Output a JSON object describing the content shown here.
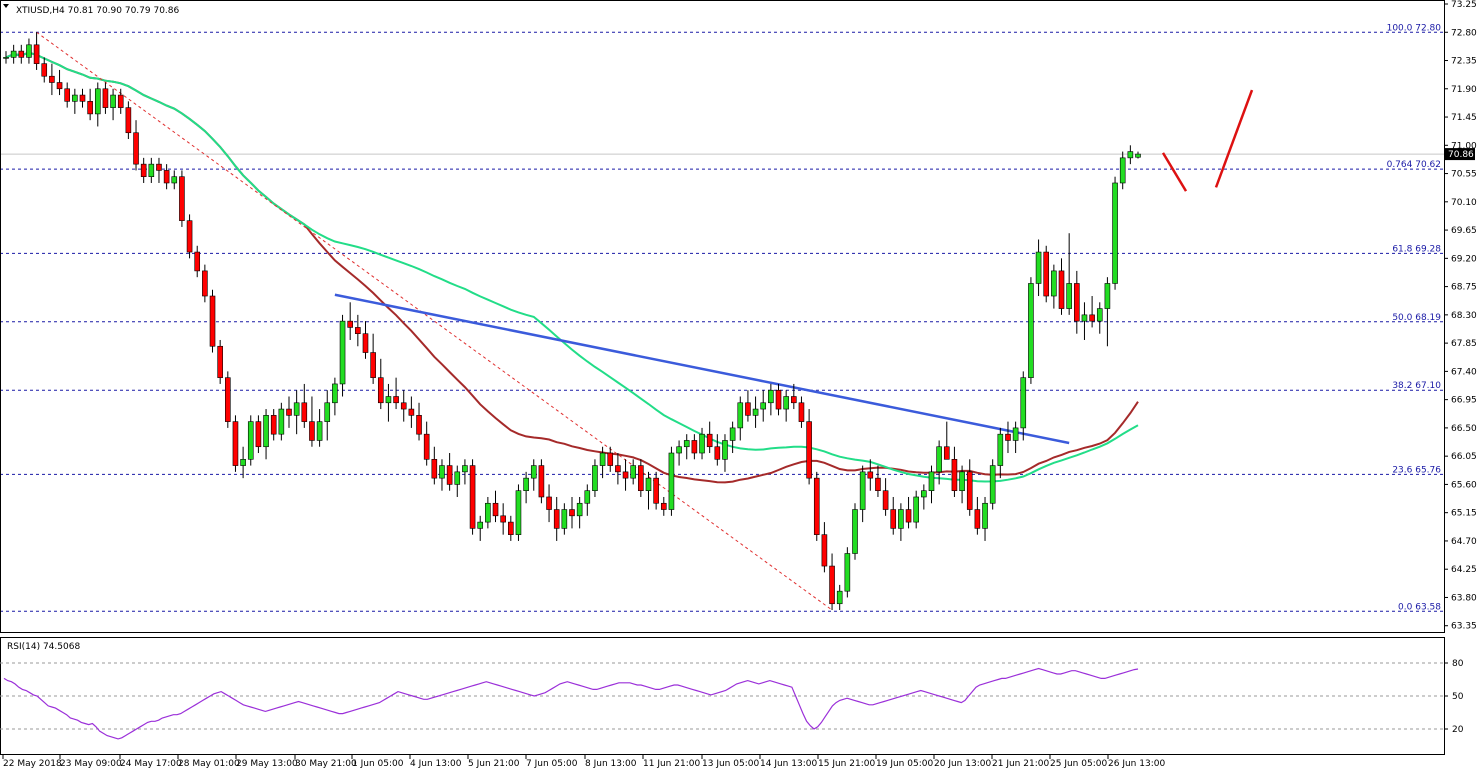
{
  "header": {
    "symbol_line": "XTIUSD,H4  70.81 70.90 70.79 70.86"
  },
  "rsi_panel": {
    "label": "RSI(14) 74.5068",
    "levels": [
      80,
      50,
      20
    ],
    "ylim": [
      0,
      100
    ],
    "values": [
      66,
      64,
      63,
      61,
      58,
      56,
      55,
      53,
      51,
      50,
      47,
      44,
      41,
      40,
      39,
      37,
      35,
      33,
      30,
      29,
      28,
      26,
      25,
      24,
      25,
      22,
      18,
      16,
      14,
      13,
      12,
      11,
      12,
      14,
      16,
      18,
      20,
      22,
      24,
      26,
      27,
      27,
      28,
      30,
      31,
      32,
      33,
      33,
      34,
      36,
      38,
      40,
      42,
      44,
      46,
      48,
      50,
      52,
      53,
      54,
      52,
      50,
      48,
      46,
      44,
      42,
      41,
      40,
      39,
      38,
      37,
      36,
      37,
      38,
      39,
      40,
      41,
      42,
      43,
      44,
      45,
      44,
      43,
      42,
      41,
      40,
      39,
      38,
      37,
      36,
      35,
      34,
      34,
      35,
      36,
      37,
      38,
      39,
      40,
      41,
      42,
      43,
      44,
      46,
      48,
      50,
      52,
      54,
      53,
      52,
      51,
      50,
      49,
      48,
      47,
      47,
      48,
      49,
      50,
      51,
      52,
      53,
      54,
      55,
      56,
      57,
      58,
      59,
      60,
      61,
      62,
      63,
      62,
      61,
      60,
      59,
      58,
      57,
      56,
      55,
      54,
      53,
      52,
      51,
      50,
      51,
      52,
      53,
      55,
      57,
      59,
      61,
      62,
      63,
      62,
      61,
      60,
      59,
      58,
      57,
      56,
      56,
      57,
      58,
      59,
      60,
      61,
      62,
      62,
      62,
      62,
      61,
      60,
      60,
      59,
      58,
      57,
      56,
      56,
      57,
      58,
      59,
      60,
      60,
      59,
      58,
      57,
      56,
      55,
      54,
      53,
      52,
      51,
      52,
      53,
      54,
      55,
      57,
      59,
      61,
      62,
      63,
      64,
      63,
      62,
      61,
      62,
      63,
      64,
      63,
      62,
      61,
      60,
      59,
      58,
      50,
      42,
      34,
      27,
      23,
      20,
      22,
      26,
      31,
      36,
      41,
      44,
      46,
      47,
      48,
      47,
      46,
      45,
      44,
      43,
      42,
      42,
      43,
      44,
      45,
      46,
      47,
      48,
      49,
      50,
      51,
      52,
      53,
      54,
      55,
      54,
      53,
      52,
      51,
      50,
      49,
      48,
      47,
      46,
      45,
      44,
      46,
      50,
      54,
      58,
      60,
      61,
      62,
      63,
      64,
      65,
      66,
      66,
      67,
      68,
      69,
      70,
      71,
      72,
      73,
      74,
      75,
      74,
      73,
      72,
      71,
      70,
      70,
      71,
      72,
      73,
      73,
      72,
      71,
      70,
      69,
      68,
      67,
      66,
      66,
      67,
      68,
      69,
      70,
      71,
      72,
      73,
      74,
      74.5
    ]
  },
  "chart_data": {
    "type": "candlestick",
    "title": "XTIUSD,H4",
    "ylim": [
      63.25,
      73.25
    ],
    "y_ticks": [
      "73.25",
      "72.80",
      "72.35",
      "71.90",
      "71.45",
      "71.00",
      "70.55",
      "70.10",
      "69.65",
      "69.20",
      "68.75",
      "68.30",
      "67.85",
      "67.40",
      "66.95",
      "66.50",
      "66.05",
      "65.60",
      "65.15",
      "64.70",
      "64.25",
      "63.80",
      "63.35"
    ],
    "x_tick_labels": [
      "22 May 2018",
      "23 May 09:00",
      "24 May 17:00",
      "28 May 01:00",
      "29 May 13:00",
      "30 May 21:00",
      "1 Jun 05:00",
      "4 Jun 13:00",
      "5 Jun 21:00",
      "7 Jun 05:00",
      "8 Jun 13:00",
      "11 Jun 21:00",
      "13 Jun 05:00",
      "14 Jun 13:00",
      "15 Jun 21:00",
      "19 Jun 05:00",
      "20 Jun 13:00",
      "21 Jun 21:00",
      "25 Jun 05:00",
      "26 Jun 13:00"
    ],
    "current_price": "70.86",
    "fibonacci": [
      {
        "label": "100.0 72.80",
        "price": 72.8
      },
      {
        "label": "0.764 70.62",
        "price": 70.62
      },
      {
        "label": "61.8 69.28",
        "price": 69.28
      },
      {
        "label": "50.0 68.19",
        "price": 68.19
      },
      {
        "label": "38.2 67.10",
        "price": 67.1
      },
      {
        "label": "23.6 65.76",
        "price": 65.76
      },
      {
        "label": "0.0 63.58",
        "price": 63.58
      }
    ],
    "ohlc": [
      [
        72.4,
        72.5,
        72.3,
        72.4
      ],
      [
        72.4,
        72.6,
        72.3,
        72.5
      ],
      [
        72.5,
        72.6,
        72.3,
        72.4
      ],
      [
        72.4,
        72.7,
        72.3,
        72.6
      ],
      [
        72.6,
        72.8,
        72.2,
        72.3
      ],
      [
        72.3,
        72.4,
        72.0,
        72.1
      ],
      [
        72.1,
        72.3,
        71.8,
        72.0
      ],
      [
        72.0,
        72.2,
        71.8,
        71.9
      ],
      [
        71.9,
        72.0,
        71.6,
        71.7
      ],
      [
        71.7,
        71.9,
        71.5,
        71.8
      ],
      [
        71.8,
        71.9,
        71.6,
        71.7
      ],
      [
        71.7,
        71.9,
        71.4,
        71.5
      ],
      [
        71.5,
        72.0,
        71.3,
        71.9
      ],
      [
        71.9,
        72.0,
        71.5,
        71.6
      ],
      [
        71.6,
        71.9,
        71.4,
        71.8
      ],
      [
        71.8,
        71.9,
        71.5,
        71.6
      ],
      [
        71.6,
        71.7,
        71.1,
        71.2
      ],
      [
        71.2,
        71.4,
        70.6,
        70.7
      ],
      [
        70.7,
        70.8,
        70.4,
        70.5
      ],
      [
        70.5,
        70.8,
        70.4,
        70.7
      ],
      [
        70.7,
        70.8,
        70.4,
        70.6
      ],
      [
        70.6,
        70.7,
        70.3,
        70.4
      ],
      [
        70.4,
        70.6,
        70.3,
        70.5
      ],
      [
        70.5,
        70.6,
        69.7,
        69.8
      ],
      [
        69.8,
        69.9,
        69.2,
        69.3
      ],
      [
        69.3,
        69.4,
        68.9,
        69.0
      ],
      [
        69.0,
        69.1,
        68.5,
        68.6
      ],
      [
        68.6,
        68.7,
        67.7,
        67.8
      ],
      [
        67.8,
        67.9,
        67.2,
        67.3
      ],
      [
        67.3,
        67.4,
        66.5,
        66.6
      ],
      [
        66.6,
        66.7,
        65.8,
        65.9
      ],
      [
        65.9,
        66.2,
        65.7,
        66.0
      ],
      [
        66.0,
        66.7,
        65.9,
        66.6
      ],
      [
        66.6,
        66.7,
        66.1,
        66.2
      ],
      [
        66.2,
        66.8,
        66.0,
        66.7
      ],
      [
        66.7,
        66.8,
        66.3,
        66.4
      ],
      [
        66.4,
        66.9,
        66.3,
        66.8
      ],
      [
        66.8,
        67.0,
        66.5,
        66.7
      ],
      [
        66.7,
        67.1,
        66.4,
        66.9
      ],
      [
        66.9,
        67.2,
        66.5,
        66.6
      ],
      [
        66.6,
        67.0,
        66.2,
        66.3
      ],
      [
        66.3,
        66.8,
        66.2,
        66.6
      ],
      [
        66.6,
        67.1,
        66.3,
        66.9
      ],
      [
        66.9,
        67.3,
        66.7,
        67.2
      ],
      [
        67.2,
        68.3,
        67.0,
        68.2
      ],
      [
        68.2,
        68.5,
        67.9,
        68.1
      ],
      [
        68.1,
        68.3,
        67.8,
        68.0
      ],
      [
        68.0,
        68.2,
        67.6,
        67.7
      ],
      [
        67.7,
        68.0,
        67.2,
        67.3
      ],
      [
        67.3,
        67.6,
        66.8,
        66.9
      ],
      [
        66.9,
        67.2,
        66.6,
        67.0
      ],
      [
        67.0,
        67.3,
        66.8,
        66.9
      ],
      [
        66.9,
        67.1,
        66.6,
        66.8
      ],
      [
        66.8,
        67.0,
        66.5,
        66.7
      ],
      [
        66.7,
        66.9,
        66.3,
        66.4
      ],
      [
        66.4,
        66.6,
        65.9,
        66.0
      ],
      [
        66.0,
        66.2,
        65.6,
        65.7
      ],
      [
        65.7,
        66.0,
        65.5,
        65.9
      ],
      [
        65.9,
        66.1,
        65.5,
        65.6
      ],
      [
        65.6,
        65.9,
        65.4,
        65.8
      ],
      [
        65.8,
        66.0,
        65.6,
        65.9
      ],
      [
        65.9,
        66.0,
        64.8,
        64.9
      ],
      [
        64.9,
        65.1,
        64.7,
        65.0
      ],
      [
        65.0,
        65.4,
        64.9,
        65.3
      ],
      [
        65.3,
        65.5,
        65.0,
        65.1
      ],
      [
        65.1,
        65.3,
        64.8,
        65.0
      ],
      [
        65.0,
        65.1,
        64.7,
        64.8
      ],
      [
        64.8,
        65.6,
        64.7,
        65.5
      ],
      [
        65.5,
        65.8,
        65.3,
        65.7
      ],
      [
        65.7,
        66.0,
        65.5,
        65.9
      ],
      [
        65.9,
        66.0,
        65.3,
        65.4
      ],
      [
        65.4,
        65.6,
        65.0,
        65.2
      ],
      [
        65.2,
        65.4,
        64.7,
        64.9
      ],
      [
        64.9,
        65.3,
        64.8,
        65.2
      ],
      [
        65.2,
        65.4,
        64.9,
        65.1
      ],
      [
        65.1,
        65.4,
        64.9,
        65.3
      ],
      [
        65.3,
        65.6,
        65.1,
        65.5
      ],
      [
        65.5,
        66.0,
        65.4,
        65.9
      ],
      [
        65.9,
        66.2,
        65.7,
        66.1
      ],
      [
        66.1,
        66.2,
        65.8,
        65.9
      ],
      [
        65.9,
        66.1,
        65.6,
        65.8
      ],
      [
        65.8,
        66.0,
        65.5,
        65.7
      ],
      [
        65.7,
        66.0,
        65.6,
        65.9
      ],
      [
        65.9,
        66.0,
        65.4,
        65.5
      ],
      [
        65.5,
        65.8,
        65.2,
        65.7
      ],
      [
        65.7,
        65.8,
        65.2,
        65.3
      ],
      [
        65.3,
        65.4,
        65.1,
        65.2
      ],
      [
        65.2,
        66.2,
        65.1,
        66.1
      ],
      [
        66.1,
        66.3,
        65.9,
        66.2
      ],
      [
        66.2,
        66.4,
        66.0,
        66.3
      ],
      [
        66.3,
        66.4,
        66.0,
        66.1
      ],
      [
        66.1,
        66.5,
        66.0,
        66.4
      ],
      [
        66.4,
        66.6,
        66.1,
        66.2
      ],
      [
        66.2,
        66.4,
        65.9,
        66.0
      ],
      [
        66.0,
        66.4,
        65.8,
        66.3
      ],
      [
        66.3,
        66.6,
        66.1,
        66.5
      ],
      [
        66.5,
        67.0,
        66.3,
        66.9
      ],
      [
        66.9,
        67.1,
        66.6,
        66.7
      ],
      [
        66.7,
        67.0,
        66.5,
        66.8
      ],
      [
        66.8,
        67.1,
        66.6,
        66.9
      ],
      [
        66.9,
        67.2,
        66.7,
        67.1
      ],
      [
        67.1,
        67.2,
        66.7,
        66.8
      ],
      [
        66.8,
        67.1,
        66.6,
        67.0
      ],
      [
        67.0,
        67.2,
        66.8,
        66.9
      ],
      [
        66.9,
        67.0,
        66.5,
        66.6
      ],
      [
        66.6,
        66.8,
        65.6,
        65.7
      ],
      [
        65.7,
        65.8,
        64.7,
        64.8
      ],
      [
        64.8,
        65.0,
        64.2,
        64.3
      ],
      [
        64.3,
        64.5,
        63.6,
        63.7
      ],
      [
        63.7,
        64.0,
        63.6,
        63.9
      ],
      [
        63.9,
        64.6,
        63.8,
        64.5
      ],
      [
        64.5,
        65.3,
        64.4,
        65.2
      ],
      [
        65.2,
        65.9,
        65.0,
        65.8
      ],
      [
        65.8,
        66.0,
        65.5,
        65.7
      ],
      [
        65.7,
        65.9,
        65.4,
        65.5
      ],
      [
        65.5,
        65.7,
        65.1,
        65.2
      ],
      [
        65.2,
        65.4,
        64.8,
        64.9
      ],
      [
        64.9,
        65.3,
        64.7,
        65.2
      ],
      [
        65.2,
        65.4,
        64.9,
        65.0
      ],
      [
        65.0,
        65.5,
        64.9,
        65.4
      ],
      [
        65.4,
        65.6,
        65.2,
        65.5
      ],
      [
        65.5,
        65.9,
        65.3,
        65.8
      ],
      [
        65.8,
        66.3,
        65.6,
        66.2
      ],
      [
        66.2,
        66.6,
        66.0,
        66.0
      ],
      [
        66.0,
        66.2,
        65.4,
        65.5
      ],
      [
        65.5,
        65.9,
        65.3,
        65.8
      ],
      [
        65.8,
        66.0,
        65.1,
        65.2
      ],
      [
        65.2,
        65.4,
        64.8,
        64.9
      ],
      [
        64.9,
        65.4,
        64.7,
        65.3
      ],
      [
        65.3,
        66.0,
        65.2,
        65.9
      ],
      [
        65.9,
        66.5,
        65.7,
        66.4
      ],
      [
        66.4,
        66.6,
        66.1,
        66.3
      ],
      [
        66.3,
        66.6,
        66.1,
        66.5
      ],
      [
        66.5,
        67.4,
        66.3,
        67.3
      ],
      [
        67.3,
        68.9,
        67.2,
        68.8
      ],
      [
        68.8,
        69.5,
        68.6,
        69.3
      ],
      [
        69.3,
        69.4,
        68.5,
        68.6
      ],
      [
        68.6,
        69.1,
        68.4,
        69.0
      ],
      [
        69.0,
        69.2,
        68.3,
        68.4
      ],
      [
        68.4,
        69.6,
        68.3,
        68.8
      ],
      [
        68.8,
        69.0,
        68.0,
        68.2
      ],
      [
        68.2,
        68.5,
        67.9,
        68.3
      ],
      [
        68.3,
        68.6,
        68.1,
        68.2
      ],
      [
        68.2,
        68.5,
        68.0,
        68.4
      ],
      [
        68.4,
        68.9,
        67.8,
        68.8
      ],
      [
        68.8,
        70.5,
        68.7,
        70.4
      ],
      [
        70.4,
        70.9,
        70.3,
        70.8
      ],
      [
        70.8,
        71.0,
        70.7,
        70.9
      ],
      [
        70.81,
        70.9,
        70.79,
        70.86
      ]
    ]
  }
}
